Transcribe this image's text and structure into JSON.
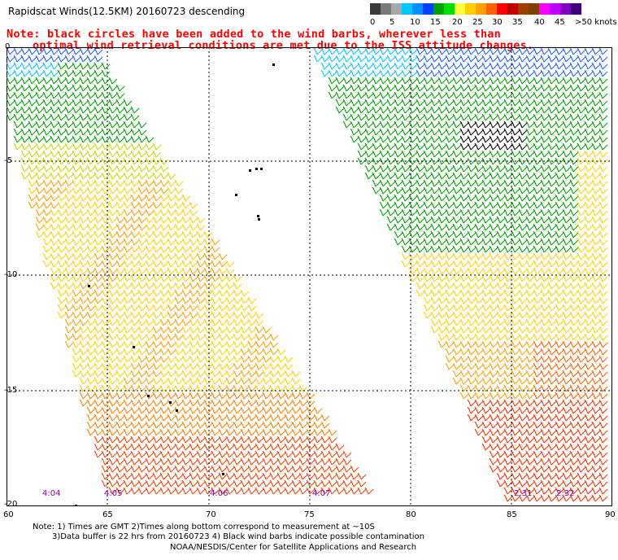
{
  "title": "Rapidscat Winds(12.5KM) 20160723 descending",
  "note_line1": "Note: black circles have been added to the wind barbs, wherever less than",
  "note_line2": "optimal wind retrieval conditions are met due to the ISS attitude changes.",
  "legend": {
    "labels": [
      "0",
      "5",
      "10",
      "15",
      "20",
      "25",
      "30",
      "35",
      "40",
      "45",
      ">50 knots"
    ],
    "colors": [
      "#3a3a3a",
      "#7a7a7a",
      "#a8a8a8",
      "#00c8ff",
      "#0090ff",
      "#0040ff",
      "#00a000",
      "#00e000",
      "#ffff40",
      "#ffd000",
      "#ffa000",
      "#ff6000",
      "#ff0000",
      "#c00000",
      "#a04000",
      "#804000",
      "#ff00ff",
      "#c000ff",
      "#8000c0",
      "#400080"
    ]
  },
  "map": {
    "y_labels": [
      "0",
      "-5",
      "-10",
      "-15",
      "-20"
    ],
    "x_labels": [
      "60",
      "65",
      "70",
      "75",
      "80",
      "85",
      "90"
    ],
    "times": [
      "4:04",
      "4:05",
      "4:06",
      "4:07",
      "2:31",
      "2:32"
    ]
  },
  "footer": {
    "line1": "Note: 1) Times are GMT 2)Times along bottom correspond to measurement at ~10S",
    "line2": "3)Data buffer is 22 hrs from 20160723 4) Black wind barbs indicate possible contamination",
    "line3": "NOAA/NESDIS/Center for Satellite Applications and Research"
  }
}
